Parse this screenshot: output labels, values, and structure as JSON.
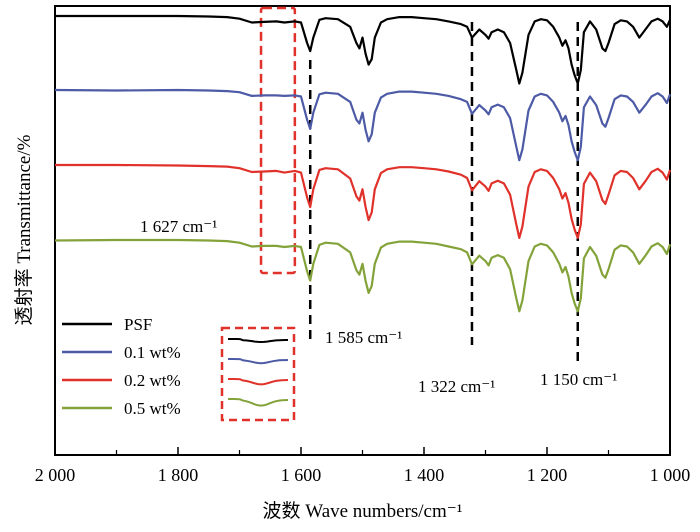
{
  "chart_data": {
    "type": "line",
    "title": "",
    "xlabel": "波数 Wave numbers/cm⁻¹",
    "ylabel": "透射率 Transmittance/%",
    "xlim": [
      2000,
      1000
    ],
    "x_reversed": true,
    "x_ticks": [
      2000,
      1800,
      1600,
      1400,
      1200,
      1000
    ],
    "x_tick_labels": [
      "2 000",
      "1 800",
      "1 600",
      "1 400",
      "1 200",
      "1 000"
    ],
    "y_ticks_shown": false,
    "grid": false,
    "legend_position": "bottom-left",
    "x": [
      2000,
      1900,
      1800,
      1750,
      1720,
      1700,
      1680,
      1660,
      1640,
      1627,
      1610,
      1600,
      1590,
      1585,
      1580,
      1570,
      1560,
      1540,
      1520,
      1510,
      1505,
      1500,
      1495,
      1490,
      1485,
      1480,
      1470,
      1460,
      1440,
      1420,
      1400,
      1380,
      1360,
      1340,
      1330,
      1322,
      1310,
      1300,
      1295,
      1290,
      1280,
      1270,
      1260,
      1250,
      1245,
      1240,
      1230,
      1220,
      1210,
      1200,
      1190,
      1180,
      1175,
      1170,
      1165,
      1160,
      1155,
      1150,
      1145,
      1140,
      1130,
      1120,
      1110,
      1105,
      1100,
      1090,
      1080,
      1070,
      1060,
      1050,
      1040,
      1030,
      1020,
      1012,
      1005,
      1000
    ],
    "series": [
      {
        "name": "PSF",
        "color": "#000000",
        "values": [
          99.0,
          99.0,
          99.0,
          98.9,
          98.8,
          98.5,
          97.8,
          97.9,
          98.0,
          97.8,
          98.0,
          97.8,
          94.0,
          92.5,
          95.0,
          98.3,
          98.6,
          98.4,
          97.0,
          94.0,
          93.0,
          95.0,
          92.0,
          90.0,
          91.0,
          95.0,
          97.8,
          98.4,
          98.8,
          98.8,
          98.6,
          98.4,
          98.0,
          97.5,
          97.0,
          95.0,
          96.5,
          95.5,
          94.8,
          96.0,
          96.5,
          96.0,
          94.0,
          89.0,
          86.5,
          88.5,
          95.5,
          98.0,
          98.4,
          98.2,
          97.0,
          95.0,
          93.5,
          94.5,
          93.0,
          90.0,
          88.0,
          86.5,
          89.0,
          96.0,
          98.0,
          96.5,
          93.0,
          92.5,
          94.0,
          97.5,
          98.2,
          98.0,
          97.0,
          95.0,
          96.5,
          98.0,
          98.5,
          98.0,
          97.0,
          98.3
        ]
      },
      {
        "name": "0.1 wt%",
        "color": "#4d5aa6",
        "values": [
          99.0,
          98.9,
          99.0,
          98.9,
          98.8,
          98.6,
          97.9,
          98.0,
          98.0,
          97.9,
          98.0,
          97.8,
          93.5,
          91.8,
          94.8,
          98.2,
          98.5,
          98.3,
          96.8,
          93.5,
          92.8,
          94.8,
          91.6,
          89.5,
          90.8,
          94.8,
          97.6,
          98.3,
          98.7,
          98.7,
          98.5,
          98.3,
          97.9,
          97.3,
          96.8,
          94.6,
          96.2,
          95.2,
          94.5,
          95.8,
          96.3,
          95.8,
          93.8,
          88.5,
          86.0,
          88.0,
          95.2,
          97.8,
          98.3,
          98.0,
          96.8,
          94.8,
          93.2,
          94.2,
          92.5,
          89.5,
          87.5,
          86.0,
          88.5,
          95.8,
          97.8,
          96.2,
          92.8,
          92.2,
          93.8,
          97.3,
          98.0,
          97.8,
          96.8,
          94.8,
          96.2,
          97.8,
          98.4,
          97.8,
          96.6,
          98.2
        ]
      },
      {
        "name": "0.2 wt%",
        "color": "#e0312a",
        "values": [
          99.0,
          99.0,
          98.9,
          98.8,
          98.7,
          98.4,
          97.7,
          97.8,
          97.9,
          97.6,
          97.9,
          97.6,
          93.0,
          91.2,
          94.5,
          98.1,
          98.4,
          98.2,
          96.5,
          93.2,
          92.4,
          94.5,
          91.2,
          88.8,
          90.2,
          94.5,
          97.5,
          98.2,
          98.6,
          98.6,
          98.4,
          98.2,
          97.8,
          97.2,
          96.6,
          94.3,
          96.0,
          95.0,
          94.2,
          95.6,
          96.1,
          95.6,
          93.5,
          88.0,
          85.5,
          87.6,
          95.0,
          97.7,
          98.2,
          97.9,
          96.6,
          94.5,
          92.8,
          93.8,
          92.0,
          89.0,
          87.0,
          85.5,
          88.0,
          95.5,
          97.6,
          96.0,
          92.5,
          91.8,
          93.5,
          97.1,
          97.9,
          97.7,
          96.6,
          94.5,
          96.0,
          97.7,
          98.3,
          97.6,
          96.3,
          98.1
        ]
      },
      {
        "name": "0.5 wt%",
        "color": "#83a33a",
        "values": [
          98.9,
          99.0,
          99.0,
          98.9,
          98.8,
          98.5,
          97.8,
          97.9,
          97.9,
          97.7,
          97.9,
          97.7,
          93.2,
          91.5,
          94.6,
          98.1,
          98.5,
          98.3,
          96.7,
          93.4,
          92.6,
          94.6,
          91.4,
          89.2,
          90.5,
          94.6,
          97.6,
          98.3,
          98.7,
          98.7,
          98.5,
          98.3,
          97.8,
          97.3,
          96.7,
          94.5,
          96.1,
          95.1,
          94.3,
          95.7,
          96.2,
          95.7,
          93.6,
          88.2,
          85.8,
          87.8,
          95.1,
          97.8,
          98.3,
          98.0,
          96.7,
          94.6,
          93.0,
          94.0,
          92.2,
          89.2,
          87.2,
          85.8,
          88.2,
          95.6,
          97.7,
          96.1,
          92.6,
          92.0,
          93.6,
          97.2,
          98.0,
          97.8,
          96.7,
          94.6,
          96.1,
          97.8,
          98.4,
          97.7,
          96.4,
          98.2
        ]
      }
    ],
    "annotations": [
      {
        "text": "1 627 cm⁻¹",
        "x": 1627
      },
      {
        "text": "1 585 cm⁻¹",
        "x": 1585
      },
      {
        "text": "1 322 cm⁻¹",
        "x": 1322
      },
      {
        "text": "1 150 cm⁻¹",
        "x": 1150
      }
    ],
    "highlight_box_color": "#e0312a"
  }
}
